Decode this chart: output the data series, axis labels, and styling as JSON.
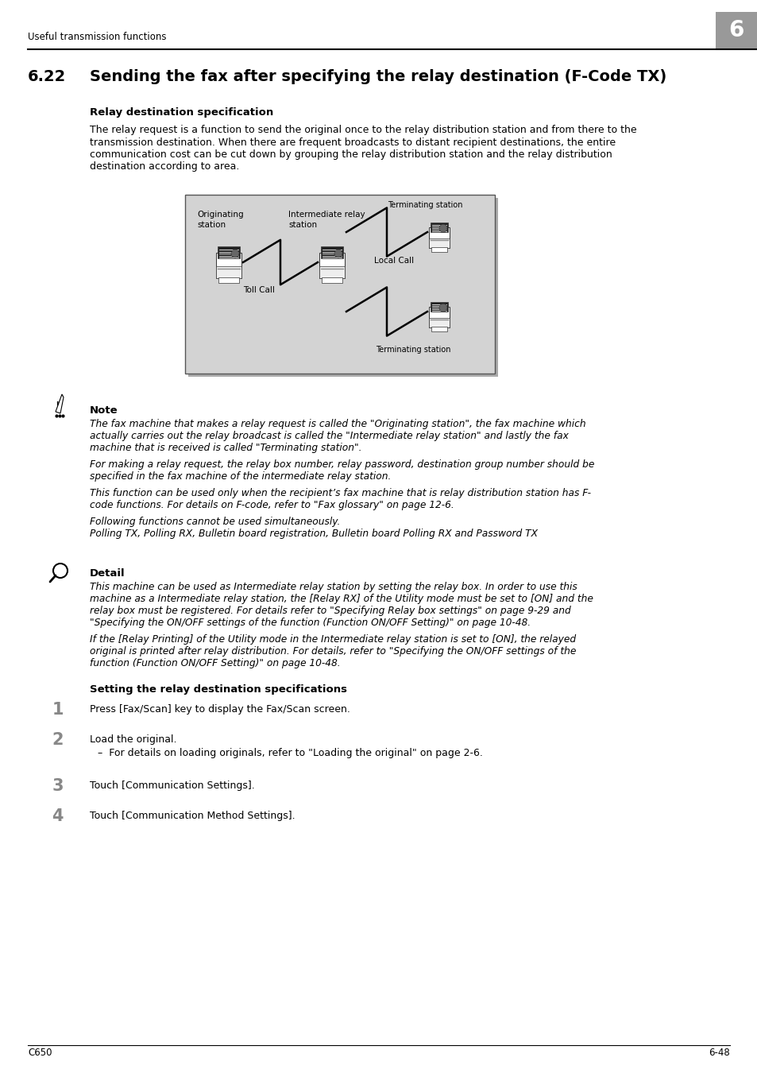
{
  "page_header": "Useful transmission functions",
  "chapter_number": "6",
  "section_number": "6.22",
  "section_title": "Sending the fax after specifying the relay destination (F-Code TX)",
  "subsection1_title": "Relay destination specification",
  "body_text1_lines": [
    "The relay request is a function to send the original once to the relay distribution station and from there to the",
    "transmission destination. When there are frequent broadcasts to distant recipient destinations, the entire",
    "communication cost can be cut down by grouping the relay distribution station and the relay distribution",
    "destination according to area."
  ],
  "note_title": "Note",
  "note_text1_lines": [
    "The fax machine that makes a relay request is called the \"Originating station\", the fax machine which",
    "actually carries out the relay broadcast is called the \"Intermediate relay station\" and lastly the fax",
    "machine that is received is called \"Terminating station\"."
  ],
  "note_text2_lines": [
    "For making a relay request, the relay box number, relay password, destination group number should be",
    "specified in the fax machine of the intermediate relay station."
  ],
  "note_text3_lines": [
    "This function can be used only when the recipient’s fax machine that is relay distribution station has F-",
    "code functions. For details on F-code, refer to \"Fax glossary\" on page 12-6."
  ],
  "note_text4_lines": [
    "Following functions cannot be used simultaneously.",
    "Polling TX, Polling RX, Bulletin board registration, Bulletin board Polling RX and Password TX"
  ],
  "detail_title": "Detail",
  "detail_text1_lines": [
    "This machine can be used as Intermediate relay station by setting the relay box. In order to use this",
    "machine as a Intermediate relay station, the [Relay RX] of the Utility mode must be set to [ON] and the",
    "relay box must be registered. For details refer to \"Specifying Relay box settings\" on page 9-29 and",
    "\"Specifying the ON/OFF settings of the function (Function ON/OFF Setting)\" on page 10-48."
  ],
  "detail_text2_lines": [
    "If the [Relay Printing] of the Utility mode in the Intermediate relay station is set to [ON], the relayed",
    "original is printed after relay distribution. For details, refer to \"Specifying the ON/OFF settings of the",
    "function (Function ON/OFF Setting)\" on page 10-48."
  ],
  "subsection2_title": "Setting the relay destination specifications",
  "step1": "Press [Fax/Scan] key to display the Fax/Scan screen.",
  "step2": "Load the original.",
  "step2_sub": "For details on loading originals, refer to \"Loading the original\" on page 2-6.",
  "step3": "Touch [Communication Settings].",
  "step4": "Touch [Communication Method Settings].",
  "footer_left": "C650",
  "footer_right": "6-48",
  "bg_color": "#ffffff",
  "diagram_bg": "#d3d3d3",
  "chapter_box_color": "#999999"
}
